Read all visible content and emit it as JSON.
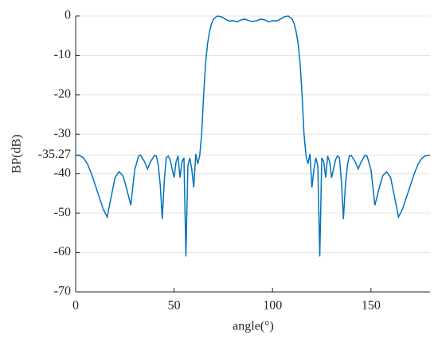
{
  "chart_data": {
    "type": "line",
    "xlabel": "angle(°)",
    "ylabel": "BP(dB)",
    "x": [
      0,
      2,
      4,
      6,
      8,
      10,
      12,
      14,
      16,
      18,
      20,
      22,
      24,
      26,
      28,
      30,
      32,
      33,
      35,
      36.5,
      38,
      40,
      41,
      42,
      43,
      44,
      45,
      46,
      47,
      48,
      50,
      51,
      52,
      53,
      54,
      55,
      56,
      57,
      58,
      59,
      60,
      61,
      62,
      63,
      64,
      65,
      66,
      67,
      68,
      69,
      70,
      72,
      74,
      76,
      78,
      80,
      82,
      84,
      86,
      88,
      90,
      92,
      94,
      96,
      98,
      100,
      102,
      104,
      106,
      108,
      110,
      111,
      112,
      113,
      114,
      115,
      116,
      117,
      118,
      119,
      120,
      121,
      122,
      123,
      124,
      125,
      126,
      127,
      128,
      129,
      130,
      132,
      133,
      134,
      135,
      136,
      137,
      138,
      139,
      140,
      142,
      143.5,
      145,
      147,
      148,
      150,
      152,
      154,
      156,
      158,
      160,
      162,
      164,
      166,
      168,
      170,
      172,
      174,
      176,
      178,
      180
    ],
    "series": [
      {
        "color": "#0072bd",
        "values": [
          -35.3,
          -35.4,
          -36,
          -37.5,
          -40,
          -43,
          -46,
          -49,
          -51,
          -46,
          -41,
          -39.5,
          -40.5,
          -44,
          -48,
          -39,
          -35.5,
          -35.3,
          -37,
          -38.8,
          -37,
          -35.4,
          -35.5,
          -38,
          -43,
          -51.5,
          -42,
          -36,
          -35.5,
          -36.5,
          -41,
          -37,
          -35.5,
          -41,
          -37,
          -36,
          -61,
          -38,
          -36,
          -39,
          -43.5,
          -35,
          -37.5,
          -35.5,
          -30,
          -20,
          -12,
          -7,
          -4,
          -2,
          -0.8,
          0,
          -0.2,
          -0.8,
          -1.3,
          -1.2,
          -1.5,
          -1.0,
          -0.8,
          -1.2,
          -1.4,
          -1.2,
          -0.8,
          -1.0,
          -1.5,
          -1.2,
          -1.3,
          -0.8,
          -0.2,
          0,
          -0.8,
          -2,
          -4,
          -7,
          -12,
          -20,
          -30,
          -35.5,
          -37.5,
          -35,
          -43.5,
          -39,
          -36,
          -38,
          -61,
          -36,
          -37,
          -41,
          -35.5,
          -37,
          -41,
          -36.5,
          -35.5,
          -36,
          -42,
          -51.5,
          -43,
          -38,
          -35.5,
          -35.4,
          -37,
          -38.8,
          -37,
          -35.3,
          -35.5,
          -39,
          -48,
          -44,
          -40.5,
          -39.5,
          -41,
          -46,
          -51,
          -49,
          -46,
          -43,
          -40,
          -37.5,
          -36,
          -35.4,
          -35.3
        ]
      }
    ],
    "xlim": [
      0,
      180
    ],
    "xticks": [
      0,
      50,
      100,
      150
    ],
    "ylim": [
      -70,
      0
    ],
    "yticks": [
      0,
      -10,
      -20,
      -30,
      -35.27,
      -40,
      -50,
      -60,
      -70
    ],
    "grid": true
  }
}
